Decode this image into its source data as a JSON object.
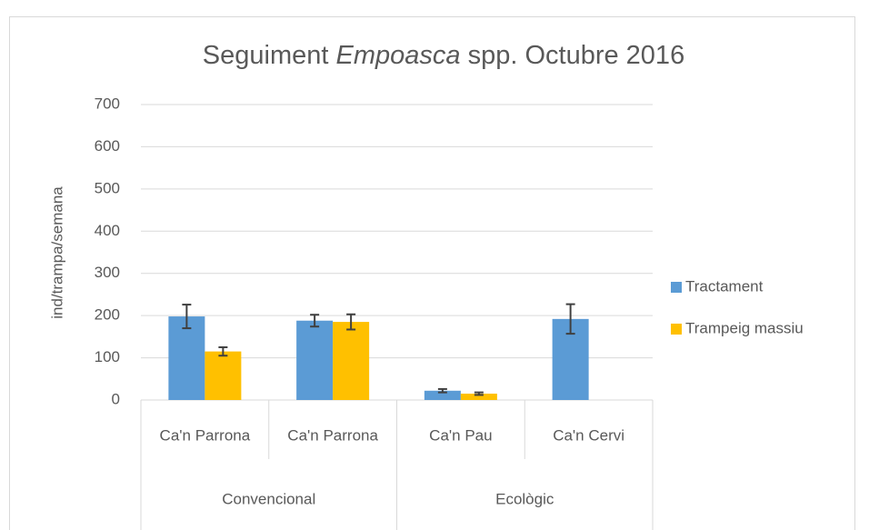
{
  "chart_data": {
    "type": "bar",
    "title": [
      "Seguiment",
      "Empoasca",
      "spp. Octubre 2016"
    ],
    "y_label": "ind/trampa/semana",
    "groups": [
      {
        "name": "Convencional",
        "categories": [
          "Ca'n Parrona",
          "Ca'n Parrona"
        ]
      },
      {
        "name": "Ecològic",
        "categories": [
          "Ca'n Pau",
          "Ca'n Cervi"
        ]
      }
    ],
    "series": [
      {
        "name": "Tractament",
        "color": "#5b9bd5",
        "values": [
          198,
          188,
          22,
          192
        ],
        "errors": [
          28,
          14,
          4,
          35
        ]
      },
      {
        "name": "Trampeig massiu",
        "color": "#ffc000",
        "values": [
          115,
          185,
          15,
          null
        ],
        "errors": [
          10,
          18,
          3,
          null
        ]
      }
    ],
    "ylim": [
      0,
      700
    ],
    "yticks": [
      0,
      100,
      200,
      300,
      400,
      500,
      600,
      700
    ],
    "grid": true,
    "legend": "right"
  }
}
